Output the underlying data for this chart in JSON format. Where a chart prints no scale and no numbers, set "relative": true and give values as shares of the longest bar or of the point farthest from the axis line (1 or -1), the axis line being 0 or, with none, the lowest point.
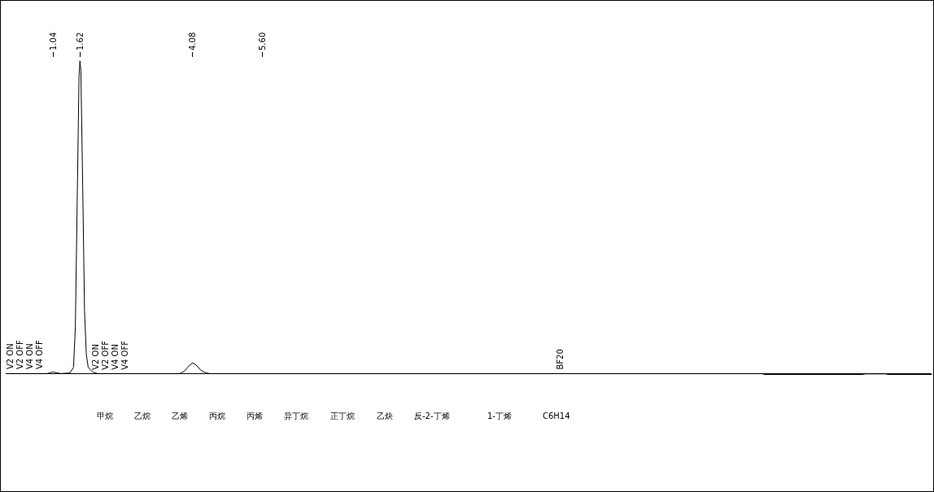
{
  "chart_data": {
    "type": "line",
    "relative": true,
    "xlim": [
      0,
      20.2
    ],
    "xticks": [
      1.04,
      1.62,
      4.08,
      {
        "value": 5.6,
        "label": "5.60"
      }
    ],
    "x": [
      0,
      0.9,
      1.0,
      1.04,
      1.1,
      1.2,
      1.4,
      1.48,
      1.52,
      1.56,
      1.6,
      1.62,
      1.64,
      1.68,
      1.72,
      1.76,
      1.8,
      1.9,
      2.0,
      3.8,
      3.9,
      4.0,
      4.08,
      4.15,
      4.25,
      4.35,
      4.45,
      16.5,
      16.55,
      18.7,
      18.75,
      19.2,
      19.25,
      20.2
    ],
    "series": [
      {
        "color": "#000000",
        "values": [
          0,
          0,
          0.004,
          0.005,
          0.003,
          0,
          0.002,
          0.02,
          0.15,
          0.55,
          0.95,
          1,
          0.97,
          0.6,
          0.2,
          0.06,
          0.02,
          0.005,
          0,
          0,
          0.008,
          0.025,
          0.034,
          0.028,
          0.012,
          0.003,
          0,
          0,
          -0.003,
          -0.003,
          -0.001,
          -0.001,
          -0.003,
          -0.003
        ]
      }
    ],
    "annotations": [
      {
        "text": "V2 ON",
        "x": 0.1,
        "y": 0
      },
      {
        "text": "V2 OFF",
        "x": 0.19,
        "y": 0
      },
      {
        "text": "V4 ON",
        "x": 0.44,
        "y": 0
      },
      {
        "text": "V4 OFF",
        "x": 0.53,
        "y": 0
      },
      {
        "text": "V2 ON",
        "x": 1.96,
        "y": 0
      },
      {
        "text": "V2 OFF",
        "x": 2.05,
        "y": 0
      },
      {
        "text": "V4 ON",
        "x": 2.34,
        "y": 0
      },
      {
        "text": "V4 OFF",
        "x": 2.43,
        "y": 0
      },
      {
        "text": "BF20",
        "x": 12.1,
        "y": 0
      },
      "甲烷",
      "乙烷",
      "乙烯",
      "丙烷",
      "丙烯",
      "异丁烷",
      "正丁烷",
      "乙炔",
      "反-2-丁烯",
      "1-丁烯",
      "C6H14"
    ],
    "grid": false,
    "marker": "none",
    "line_style": "solid"
  }
}
